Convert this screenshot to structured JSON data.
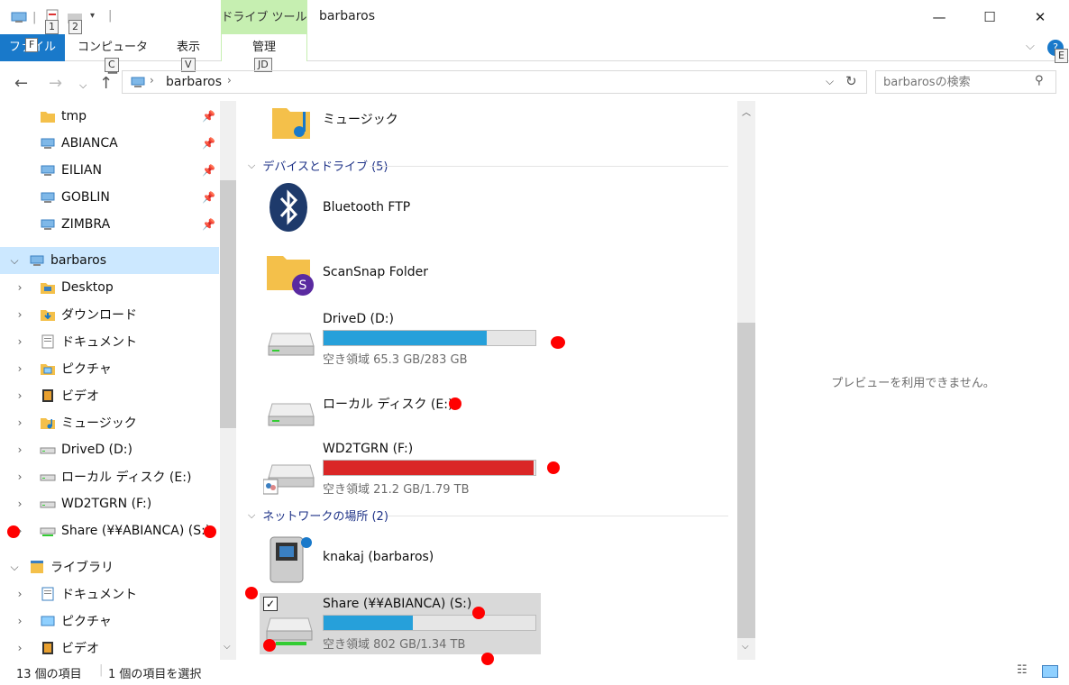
{
  "window": {
    "title": "barbaros",
    "context_tab": "ドライブ ツール",
    "quick_access_keytips": [
      "1",
      "2"
    ],
    "minimize": "—",
    "maximize": "☐",
    "close": "✕"
  },
  "ribbon": {
    "tabs": [
      {
        "label": "ファイル",
        "keytip": "F"
      },
      {
        "label": "コンピューター",
        "keytip": "C"
      },
      {
        "label": "表示",
        "keytip": "V"
      },
      {
        "label": "管理",
        "keytip": "JD"
      }
    ],
    "help_keytip": "E"
  },
  "address": {
    "path": "barbaros",
    "search_placeholder": "barbarosの検索"
  },
  "nav_pane": {
    "quick_access": [
      {
        "label": "tmp",
        "icon": "folder-icon"
      },
      {
        "label": "ABIANCA",
        "icon": "computer-icon"
      },
      {
        "label": "EILIAN",
        "icon": "computer-icon"
      },
      {
        "label": "GOBLIN",
        "icon": "computer-icon"
      },
      {
        "label": "ZIMBRA",
        "icon": "computer-icon"
      }
    ],
    "this_pc": "barbaros",
    "this_pc_items": [
      {
        "label": "Desktop",
        "icon": "desktop-folder-icon"
      },
      {
        "label": "ダウンロード",
        "icon": "downloads-folder-icon"
      },
      {
        "label": "ドキュメント",
        "icon": "documents-folder-icon"
      },
      {
        "label": "ピクチャ",
        "icon": "pictures-folder-icon"
      },
      {
        "label": "ビデオ",
        "icon": "videos-folder-icon"
      },
      {
        "label": "ミュージック",
        "icon": "music-folder-icon"
      },
      {
        "label": "DriveD (D:)",
        "icon": "drive-icon"
      },
      {
        "label": "ローカル ディスク (E:)",
        "icon": "drive-icon"
      },
      {
        "label": "WD2TGRN (F:)",
        "icon": "drive-icon"
      },
      {
        "label": "Share (¥¥ABIANCA) (S:)",
        "icon": "network-drive-icon"
      }
    ],
    "library": "ライブラリ",
    "library_items": [
      {
        "label": "ドキュメント",
        "icon": "documents-library-icon"
      },
      {
        "label": "ピクチャ",
        "icon": "pictures-library-icon"
      },
      {
        "label": "ビデオ",
        "icon": "videos-library-icon"
      }
    ]
  },
  "content": {
    "music_item": "ミュージック",
    "devices_group": "デバイスとドライブ (5)",
    "devices": [
      {
        "name": "Bluetooth FTP",
        "icon": "bluetooth-icon"
      },
      {
        "name": "ScanSnap Folder",
        "icon": "scansnap-folder-icon"
      },
      {
        "name": "DriveD (D:)",
        "icon": "drive-icon",
        "used_fraction": 0.77,
        "bar_color": "#26a0da",
        "free_text": "空き領域 65.3 GB/283 GB"
      },
      {
        "name": "ローカル ディスク (E:)",
        "icon": "drive-icon"
      },
      {
        "name": "WD2TGRN (F:)",
        "icon": "shared-drive-icon",
        "used_fraction": 0.99,
        "bar_color": "#da2626",
        "free_text": "空き領域 21.2 GB/1.79 TB"
      }
    ],
    "network_group": "ネットワークの場所 (2)",
    "network": [
      {
        "name": "knakaj (barbaros)",
        "icon": "media-server-icon"
      },
      {
        "name": "Share (¥¥ABIANCA) (S:)",
        "icon": "network-drive-icon",
        "used_fraction": 0.42,
        "bar_color": "#26a0da",
        "free_text": "空き領域 802 GB/1.34 TB",
        "selected": true
      }
    ]
  },
  "preview": {
    "message": "プレビューを利用できません。"
  },
  "status": {
    "item_count": "13 個の項目",
    "selected": "1 個の項目を選択"
  }
}
